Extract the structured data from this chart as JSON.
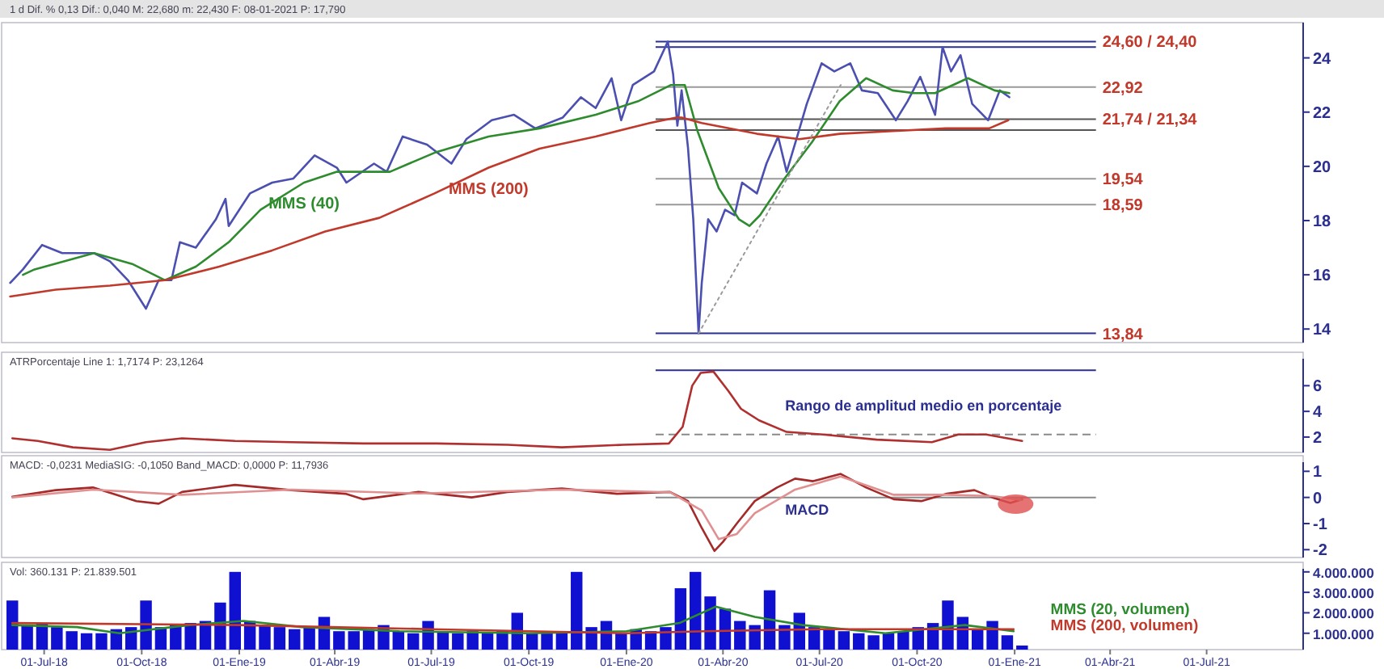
{
  "chart_data": [
    {
      "type": "line",
      "subtitle": "1 d Dif. % 0,13 Dif.: 0,040 M: 22,680 m: 22,430 F: 08-01-2021 P: 17,790",
      "xlim": [
        "2018-05-28",
        "2021-09-30"
      ],
      "ylim": [
        13.5,
        25.3
      ],
      "yticks": [
        14,
        16,
        18,
        20,
        22,
        24
      ],
      "tick_labels": "y",
      "series": [
        {
          "color": "#4b4fb0",
          "x": [
            "2018-05-30",
            "2018-06-11",
            "2018-06-29",
            "2018-07-18",
            "2018-08-17",
            "2018-09-01",
            "2018-09-18",
            "2018-10-05",
            "2018-10-17",
            "2018-10-29",
            "2018-11-06",
            "2018-11-21",
            "2018-12-10",
            "2018-12-19",
            "2018-12-22",
            "2019-01-11",
            "2019-02-01",
            "2019-02-21",
            "2019-03-13",
            "2019-04-03",
            "2019-04-12",
            "2019-05-08",
            "2019-05-20",
            "2019-06-04",
            "2019-06-27",
            "2019-07-20",
            "2019-08-03",
            "2019-08-27",
            "2019-09-17",
            "2019-10-07",
            "2019-11-02",
            "2019-11-19",
            "2019-12-03",
            "2019-12-18",
            "2019-12-27",
            "2020-01-07",
            "2020-01-27",
            "2020-02-09",
            "2020-02-14",
            "2020-02-18",
            "2020-02-22",
            "2020-02-28",
            "2020-03-04",
            "2020-03-09",
            "2020-03-12",
            "2020-03-18",
            "2020-03-26",
            "2020-04-03",
            "2020-04-12",
            "2020-04-19",
            "2020-05-03",
            "2020-05-12",
            "2020-05-23",
            "2020-05-31",
            "2020-06-10",
            "2020-06-19",
            "2020-07-03",
            "2020-07-15",
            "2020-07-30",
            "2020-08-10",
            "2020-08-25",
            "2020-09-11",
            "2020-09-22",
            "2020-10-04",
            "2020-10-18",
            "2020-10-25",
            "2020-11-02",
            "2020-11-11",
            "2020-11-22",
            "2020-12-07",
            "2020-12-18",
            "2020-12-27"
          ],
          "values": [
            15.7,
            16.2,
            17.1,
            16.8,
            16.8,
            16.5,
            15.8,
            14.75,
            15.8,
            15.8,
            17.2,
            17.0,
            18.05,
            18.8,
            17.8,
            19.0,
            19.4,
            19.55,
            20.4,
            19.95,
            19.4,
            20.1,
            19.8,
            21.1,
            20.8,
            20.1,
            21.0,
            21.7,
            21.9,
            21.4,
            21.8,
            22.55,
            22.15,
            23.25,
            21.7,
            23.0,
            23.5,
            24.6,
            23.4,
            21.5,
            22.8,
            20.7,
            18.05,
            13.84,
            15.7,
            18.05,
            17.6,
            18.4,
            18.2,
            19.4,
            19.0,
            20.1,
            21.1,
            19.8,
            21.1,
            22.3,
            23.8,
            23.5,
            23.8,
            22.8,
            22.7,
            21.7,
            22.4,
            23.3,
            21.9,
            24.4,
            23.5,
            24.1,
            22.3,
            21.7,
            22.8,
            22.55
          ]
        },
        {
          "name": "MMS (40)",
          "color": "#2e8b2e",
          "x": [
            "2018-06-11",
            "2018-06-22",
            "2018-08-17",
            "2018-09-22",
            "2018-10-23",
            "2018-11-21",
            "2018-12-22",
            "2019-01-21",
            "2019-03-03",
            "2019-04-03",
            "2019-05-23",
            "2019-07-04",
            "2019-08-24",
            "2019-10-11",
            "2019-12-03",
            "2020-01-12",
            "2020-02-12",
            "2020-02-25",
            "2020-03-08",
            "2020-03-28",
            "2020-04-16",
            "2020-04-26",
            "2020-05-06",
            "2020-05-29",
            "2020-06-24",
            "2020-07-20",
            "2020-08-14",
            "2020-09-08",
            "2020-09-28",
            "2020-10-18",
            "2020-11-18",
            "2020-12-13",
            "2020-12-27"
          ],
          "values": [
            16.0,
            16.2,
            16.8,
            16.4,
            15.8,
            16.3,
            17.2,
            18.4,
            19.4,
            19.8,
            19.8,
            20.5,
            21.1,
            21.4,
            21.9,
            22.4,
            23.0,
            23.0,
            21.3,
            19.2,
            18.05,
            17.8,
            18.2,
            19.55,
            20.9,
            22.4,
            23.25,
            22.8,
            22.7,
            22.7,
            23.25,
            22.8,
            22.7
          ]
        },
        {
          "name": "MMS (200)",
          "color": "#c0392b",
          "x": [
            "2018-05-30",
            "2018-07-12",
            "2018-09-01",
            "2018-10-23",
            "2018-12-13",
            "2019-02-01",
            "2019-03-23",
            "2019-05-13",
            "2019-07-04",
            "2019-08-24",
            "2019-10-11",
            "2019-12-03",
            "2020-01-23",
            "2020-02-17",
            "2020-02-22",
            "2020-03-12",
            "2020-05-03",
            "2020-06-12",
            "2020-07-20",
            "2020-09-08",
            "2020-10-28",
            "2020-12-08",
            "2020-12-26"
          ],
          "values": [
            15.2,
            15.45,
            15.6,
            15.8,
            16.3,
            16.9,
            17.6,
            18.1,
            19.0,
            19.95,
            20.65,
            21.1,
            21.6,
            21.8,
            21.8,
            21.6,
            21.2,
            21.0,
            21.2,
            21.3,
            21.4,
            21.4,
            21.7
          ]
        },
        {
          "color": "#9a9a9a",
          "line_style": "dotted",
          "x": [
            "2020-03-09",
            "2020-07-21"
          ],
          "values": [
            13.84,
            23.0
          ]
        }
      ],
      "ref_lines": [
        {
          "axis": "y",
          "value": 24.6,
          "label": "24,60 / 24,40",
          "color": "#2b2f8f"
        },
        {
          "axis": "y",
          "value": 24.4,
          "color": "#2b2f8f"
        },
        {
          "axis": "y",
          "value": 22.92,
          "label": "22,92",
          "color": "#9a9a9a"
        },
        {
          "axis": "y",
          "value": 21.74,
          "label": "21,74 / 21,34",
          "color": "#555555"
        },
        {
          "axis": "y",
          "value": 21.34,
          "color": "#555555"
        },
        {
          "axis": "y",
          "value": 19.54,
          "label": "19,54",
          "color": "#9a9a9a"
        },
        {
          "axis": "y",
          "value": 18.59,
          "label": "18,59",
          "color": "#9a9a9a"
        },
        {
          "axis": "y",
          "value": 13.84,
          "label": "13,84",
          "color": "#2b2f8f"
        }
      ]
    },
    {
      "type": "line",
      "subtitle": "ATRPorcentaje Line 1: 1,7174 P: 23,1264",
      "annotations": [
        "Rango de amplitud medio en porcentaje"
      ],
      "xlim": [
        "2018-05-28",
        "2021-09-30"
      ],
      "ylim": [
        0.8,
        8.1
      ],
      "yticks": [
        2,
        4,
        6
      ],
      "tick_labels": "y",
      "series": [
        {
          "color": "#b03030",
          "x": [
            "2018-06-01",
            "2018-06-25",
            "2018-07-28",
            "2018-09-01",
            "2018-10-05",
            "2018-11-08",
            "2018-12-28",
            "2019-02-19",
            "2019-04-28",
            "2019-07-06",
            "2019-09-11",
            "2019-11-01",
            "2019-12-29",
            "2020-02-10",
            "2020-02-23",
            "2020-03-03",
            "2020-03-11",
            "2020-03-23",
            "2020-04-06",
            "2020-04-18",
            "2020-05-05",
            "2020-05-31",
            "2020-07-04",
            "2020-08-24",
            "2020-10-15",
            "2020-11-09",
            "2020-12-05",
            "2021-01-08"
          ],
          "values": [
            1.9,
            1.7,
            1.2,
            1.0,
            1.6,
            1.9,
            1.7,
            1.6,
            1.5,
            1.5,
            1.4,
            1.2,
            1.4,
            1.5,
            2.8,
            6.0,
            7.0,
            7.1,
            5.6,
            4.2,
            3.3,
            2.4,
            2.2,
            1.8,
            1.6,
            2.2,
            2.2,
            1.7
          ]
        }
      ],
      "ref_lines": [
        {
          "axis": "y",
          "value": 2.2,
          "color": "#8a8a8a",
          "line_style": "dashed"
        },
        {
          "axis": "y",
          "value": 7.2,
          "color": "#2b2f8f"
        }
      ]
    },
    {
      "type": "line",
      "subtitle": "MACD: -0,0231 MediaSIG: -0,1050 Band_MACD: 0,0000 P: 11,7936",
      "annotations": [
        "MACD"
      ],
      "xlim": [
        "2018-05-28",
        "2021-09-30"
      ],
      "ylim": [
        -2.3,
        1.35
      ],
      "yticks": [
        1,
        0,
        -1,
        -2
      ],
      "tick_labels": "y",
      "series": [
        {
          "color": "#a52a2a",
          "x": [
            "2018-06-01",
            "2018-07-12",
            "2018-08-16",
            "2018-09-26",
            "2018-10-17",
            "2018-11-08",
            "2018-12-28",
            "2019-02-19",
            "2019-04-11",
            "2019-04-28",
            "2019-06-19",
            "2019-08-08",
            "2019-09-11",
            "2019-11-01",
            "2019-12-23",
            "2020-02-11",
            "2020-02-28",
            "2020-03-12",
            "2020-03-24",
            "2020-04-01",
            "2020-04-14",
            "2020-05-01",
            "2020-05-22",
            "2020-06-08",
            "2020-06-25",
            "2020-07-21",
            "2020-08-14",
            "2020-09-09",
            "2020-10-05",
            "2020-10-29",
            "2020-11-24",
            "2020-12-11",
            "2020-12-28",
            "2021-01-08"
          ],
          "values": [
            0.03,
            0.28,
            0.38,
            -0.14,
            -0.24,
            0.21,
            0.48,
            0.28,
            0.14,
            -0.07,
            0.21,
            0.0,
            0.21,
            0.34,
            0.14,
            0.21,
            -0.14,
            -1.17,
            -2.05,
            -1.7,
            -1.0,
            -0.14,
            0.38,
            0.72,
            0.62,
            0.9,
            0.38,
            -0.07,
            -0.14,
            0.14,
            0.28,
            0.0,
            -0.21,
            -0.07
          ]
        },
        {
          "color": "#e09090",
          "x": [
            "2018-06-01",
            "2018-08-16",
            "2018-11-08",
            "2019-02-19",
            "2019-06-19",
            "2019-11-01",
            "2020-02-11",
            "2020-03-12",
            "2020-03-28",
            "2020-04-14",
            "2020-05-01",
            "2020-06-08",
            "2020-07-21",
            "2020-09-09",
            "2020-10-29",
            "2020-12-11",
            "2021-01-08"
          ],
          "values": [
            0.0,
            0.3,
            0.1,
            0.3,
            0.15,
            0.3,
            0.2,
            -0.5,
            -1.6,
            -1.4,
            -0.6,
            0.3,
            0.8,
            0.1,
            0.1,
            0.05,
            -0.1
          ]
        }
      ],
      "ref_lines": [
        {
          "axis": "y",
          "value": 0,
          "color": "#8a8a8a"
        }
      ]
    },
    {
      "type": "bar",
      "subtitle": "Vol: 360.131 P: 21.839.501",
      "legend": "bottom right",
      "xlim": [
        "2018-05-28",
        "2021-09-30"
      ],
      "ylim": [
        200000,
        4150000
      ],
      "xticks": [
        {
          "value": "2018-07-01",
          "label": "01-Jul-18"
        },
        {
          "value": "2018-10-01",
          "label": "01-Oct-18"
        },
        {
          "value": "2019-01-01",
          "label": "01-Ene-19"
        },
        {
          "value": "2019-04-01",
          "label": "01-Abr-19"
        },
        {
          "value": "2019-07-01",
          "label": "01-Jul-19"
        },
        {
          "value": "2019-10-01",
          "label": "01-Oct-19"
        },
        {
          "value": "2020-01-01",
          "label": "01-Ene-20"
        },
        {
          "value": "2020-04-01",
          "label": "01-Abr-20"
        },
        {
          "value": "2020-07-01",
          "label": "01-Jul-20"
        },
        {
          "value": "2020-10-01",
          "label": "01-Oct-20"
        },
        {
          "value": "2021-01-01",
          "label": "01-Ene-21"
        },
        {
          "value": "2021-04-01",
          "label": "01-Abr-21"
        },
        {
          "value": "2021-07-01",
          "label": "01-Jul-21"
        }
      ],
      "yticks": [
        {
          "value": 1000000,
          "label": "1.000.000"
        },
        {
          "value": 2000000,
          "label": "2.000.000"
        },
        {
          "value": 3000000,
          "label": "3.000.000"
        },
        {
          "value": 4000000,
          "label": "4.000.000"
        }
      ],
      "series": [
        {
          "color": "#1010d0",
          "x": [
            "2018-06-01",
            "2018-06-15",
            "2018-06-29",
            "2018-07-13",
            "2018-07-27",
            "2018-08-10",
            "2018-08-24",
            "2018-09-07",
            "2018-09-21",
            "2018-10-05",
            "2018-10-19",
            "2018-11-02",
            "2018-11-16",
            "2018-11-30",
            "2018-12-14",
            "2018-12-28",
            "2019-01-11",
            "2019-01-25",
            "2019-02-08",
            "2019-02-22",
            "2019-03-08",
            "2019-03-22",
            "2019-04-05",
            "2019-04-19",
            "2019-05-03",
            "2019-05-17",
            "2019-05-31",
            "2019-06-14",
            "2019-06-28",
            "2019-07-12",
            "2019-07-26",
            "2019-08-09",
            "2019-08-23",
            "2019-09-06",
            "2019-09-20",
            "2019-10-04",
            "2019-10-18",
            "2019-11-01",
            "2019-11-15",
            "2019-11-29",
            "2019-12-13",
            "2019-12-27",
            "2020-01-10",
            "2020-01-24",
            "2020-02-07",
            "2020-02-21",
            "2020-03-06",
            "2020-03-20",
            "2020-04-03",
            "2020-04-17",
            "2020-05-01",
            "2020-05-15",
            "2020-05-29",
            "2020-06-12",
            "2020-06-26",
            "2020-07-10",
            "2020-07-24",
            "2020-08-07",
            "2020-08-21",
            "2020-09-04",
            "2020-09-18",
            "2020-10-02",
            "2020-10-16",
            "2020-10-30",
            "2020-11-13",
            "2020-11-27",
            "2020-12-11",
            "2020-12-25",
            "2021-01-08"
          ],
          "values": [
            2600000,
            1400000,
            1500000,
            1300000,
            1100000,
            1000000,
            1000000,
            1200000,
            1300000,
            2600000,
            1300000,
            1400000,
            1500000,
            1600000,
            2500000,
            4000000,
            1600000,
            1400000,
            1300000,
            1200000,
            1300000,
            1800000,
            1100000,
            1100000,
            1200000,
            1400000,
            1100000,
            1000000,
            1600000,
            1100000,
            1000000,
            1100000,
            1000000,
            1100000,
            2000000,
            1000000,
            1100000,
            1000000,
            4000000,
            1300000,
            1600000,
            1000000,
            1200000,
            1100000,
            1300000,
            3200000,
            4000000,
            2800000,
            2200000,
            1600000,
            1400000,
            3100000,
            1400000,
            2000000,
            1300000,
            1200000,
            1100000,
            1000000,
            900000,
            1000000,
            1100000,
            1300000,
            1500000,
            2600000,
            1800000,
            1200000,
            1600000,
            900000,
            400000
          ]
        },
        {
          "type": "line",
          "name": "MMS (20, volumen)",
          "color": "#2e8b2e",
          "x": [
            "2018-06-01",
            "2018-08-01",
            "2018-09-10",
            "2018-11-15",
            "2019-01-05",
            "2019-03-01",
            "2019-06-01",
            "2019-10-01",
            "2020-01-01",
            "2020-02-20",
            "2020-03-25",
            "2020-05-01",
            "2020-06-15",
            "2020-09-01",
            "2020-11-15",
            "2020-12-31"
          ],
          "values": [
            1400000,
            1300000,
            1000000,
            1400000,
            1600000,
            1300000,
            1100000,
            1000000,
            1100000,
            1500000,
            2300000,
            1800000,
            1400000,
            1000000,
            1400000,
            1100000
          ]
        },
        {
          "type": "line",
          "name": "MMS (200, volumen)",
          "color": "#c0392b",
          "x": [
            "2018-06-01",
            "2019-01-01",
            "2019-07-01",
            "2020-01-01",
            "2020-03-15",
            "2020-07-01",
            "2020-12-31"
          ],
          "values": [
            1500000,
            1400000,
            1200000,
            1000000,
            1100000,
            1200000,
            1200000
          ]
        }
      ]
    }
  ]
}
